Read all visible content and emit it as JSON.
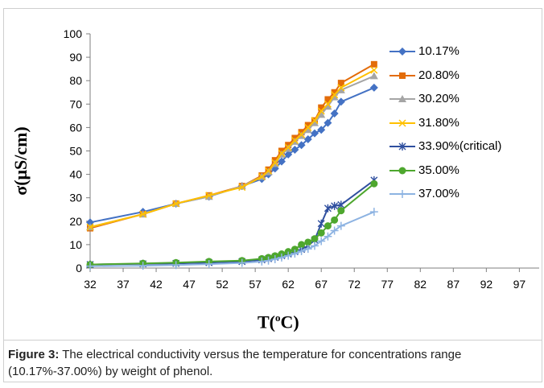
{
  "chart_data": {
    "type": "line",
    "xlabel_main": "T(",
    "xlabel_sup": "o",
    "xlabel_end": "C)",
    "ylabel": "σ(μS/cm)",
    "xlim": [
      32,
      100
    ],
    "ylim": [
      0,
      100
    ],
    "x_ticks": [
      32,
      37,
      42,
      47,
      52,
      57,
      62,
      67,
      72,
      77,
      82,
      87,
      92,
      97
    ],
    "y_ticks": [
      0,
      10,
      20,
      30,
      40,
      50,
      60,
      70,
      80,
      90,
      100
    ],
    "grid": false,
    "legend_position": "right",
    "series": [
      {
        "name": "10.17%",
        "color": "#4472c4",
        "marker": "diamond",
        "x": [
          32,
          40,
          45,
          50,
          55,
          58,
          59,
          60,
          61,
          62,
          63,
          64,
          65,
          66,
          67,
          68,
          69,
          70,
          75
        ],
        "y": [
          19.5,
          24,
          27.5,
          30.5,
          35,
          38,
          40,
          42.5,
          45.5,
          48.5,
          50.5,
          52.5,
          55,
          57.5,
          59,
          62,
          66,
          71,
          77
        ]
      },
      {
        "name": "20.80%",
        "color": "#e36c09",
        "marker": "square",
        "x": [
          32,
          40,
          45,
          50,
          55,
          58,
          59,
          60,
          61,
          62,
          63,
          64,
          65,
          66,
          67,
          68,
          69,
          70,
          75
        ],
        "y": [
          17,
          23,
          27.5,
          31,
          35,
          39.5,
          42,
          46,
          50,
          52.5,
          55.5,
          58,
          61,
          63,
          68.5,
          72,
          75,
          79,
          87
        ]
      },
      {
        "name": "30.20%",
        "color": "#a5a5a5",
        "marker": "triangle",
        "x": [
          32,
          40,
          45,
          50,
          55,
          58,
          59,
          60,
          61,
          62,
          63,
          64,
          65,
          66,
          67,
          68,
          69,
          70,
          75
        ],
        "y": [
          17.5,
          23,
          27.5,
          30.5,
          35,
          39,
          41,
          44.5,
          48.5,
          51,
          54,
          56.5,
          59,
          62,
          65.5,
          69,
          73,
          76,
          82
        ]
      },
      {
        "name": "31.80%",
        "color": "#ffc000",
        "marker": "x",
        "x": [
          32,
          40,
          45,
          50,
          55,
          58,
          59,
          60,
          61,
          62,
          63,
          64,
          65,
          66,
          67,
          68,
          69,
          70,
          75
        ],
        "y": [
          17.5,
          23,
          27.5,
          31,
          34.5,
          39,
          41.5,
          45,
          49,
          51.5,
          54.5,
          57,
          60,
          63,
          67,
          70,
          74,
          77,
          84.5
        ]
      },
      {
        "name": "33.90%(critical)",
        "color": "#2f4f9f",
        "marker": "asterisk",
        "x": [
          32,
          40,
          45,
          50,
          55,
          58,
          59,
          60,
          61,
          62,
          63,
          64,
          65,
          66,
          67,
          68,
          69,
          70,
          75
        ],
        "y": [
          1.5,
          1.8,
          2,
          2.3,
          2.8,
          3.5,
          4,
          4.6,
          5.3,
          6,
          7,
          8,
          9.5,
          12,
          19,
          25.5,
          26.5,
          27,
          37.5
        ]
      },
      {
        "name": "35.00%",
        "color": "#4ea72e",
        "marker": "circle",
        "x": [
          32,
          40,
          45,
          50,
          55,
          58,
          59,
          60,
          61,
          62,
          63,
          64,
          65,
          66,
          67,
          68,
          69,
          70,
          75
        ],
        "y": [
          1.5,
          2,
          2.3,
          2.8,
          3.2,
          4,
          4.5,
          5.2,
          6,
          7,
          8,
          10,
          11,
          12.5,
          15,
          18,
          20.5,
          24.5,
          36
        ]
      },
      {
        "name": "37.00%",
        "color": "#8db3e2",
        "marker": "plus",
        "x": [
          32,
          40,
          45,
          50,
          55,
          58,
          59,
          60,
          61,
          62,
          63,
          64,
          65,
          66,
          67,
          68,
          69,
          70,
          75
        ],
        "y": [
          0.8,
          1,
          1.3,
          1.7,
          2.2,
          2.8,
          3.2,
          3.8,
          4.5,
          5.3,
          6.2,
          7.2,
          8.2,
          9.5,
          11.5,
          13.5,
          16,
          18,
          24
        ]
      }
    ]
  },
  "caption": {
    "label": "Figure 3:",
    "text": " The electrical conductivity versus the temperature for concentrations range (10.17%-37.00%) by weight of phenol."
  }
}
